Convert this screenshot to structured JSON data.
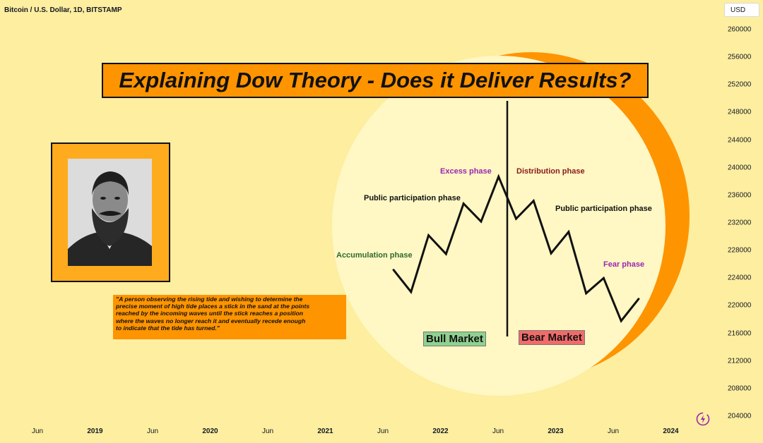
{
  "symbol_title": "Bitcoin / U.S. Dollar, 1D, BITSTAMP",
  "currency": "USD",
  "headline": "Explaining Dow Theory - Does it Deliver Results?",
  "quote": "\"A person observing the rising tide and wishing to determine the precise moment of high tide places a stick in the sand at the points reached by the incoming waves until the stick reaches a position where the waves no longer reach it and eventually recede enough to indicate that the tide has turned.\"",
  "phases": {
    "accumulation": "Accumulation phase",
    "public_participation_up": "Public participation phase",
    "excess": "Excess phase",
    "distribution": "Distribution phase",
    "public_participation_down": "Public participation phase",
    "fear": "Fear phase"
  },
  "markets": {
    "bull": "Bull Market",
    "bear": "Bear Market"
  },
  "colors": {
    "background": "#fdeea0",
    "accent_orange": "#fe9400",
    "circle_fill": "#fff7c4",
    "accumulation_text": "#2e6b2e",
    "excess_text": "#9b27af",
    "distribution_text": "#8b1a1a",
    "fear_text": "#9b27af",
    "bull_box": "#8fd18f",
    "bear_box": "#f26b6b"
  },
  "icons": {
    "logo": "lightning-logo-icon"
  },
  "chart_data": {
    "type": "line",
    "title": "Bitcoin / U.S. Dollar, 1D, BITSTAMP",
    "y_axis": {
      "ticks": [
        260000,
        256000,
        252000,
        248000,
        244000,
        240000,
        236000,
        232000,
        228000,
        224000,
        220000,
        216000,
        212000,
        208000,
        204000
      ],
      "range": [
        202000,
        262000
      ]
    },
    "x_axis": {
      "ticks": [
        "Jun",
        "2019",
        "Jun",
        "2020",
        "Jun",
        "2021",
        "Jun",
        "2022",
        "Jun",
        "2023",
        "Jun",
        "2024"
      ],
      "year_ticks": [
        "2019",
        "2020",
        "2021",
        "2022",
        "2023",
        "2024"
      ]
    },
    "series": [
      {
        "values": [
          225200,
          222000,
          230200,
          227500,
          234800,
          232200,
          238700,
          232600,
          235200,
          227600,
          230700,
          221800,
          224000,
          217800,
          221000
        ]
      }
    ]
  }
}
